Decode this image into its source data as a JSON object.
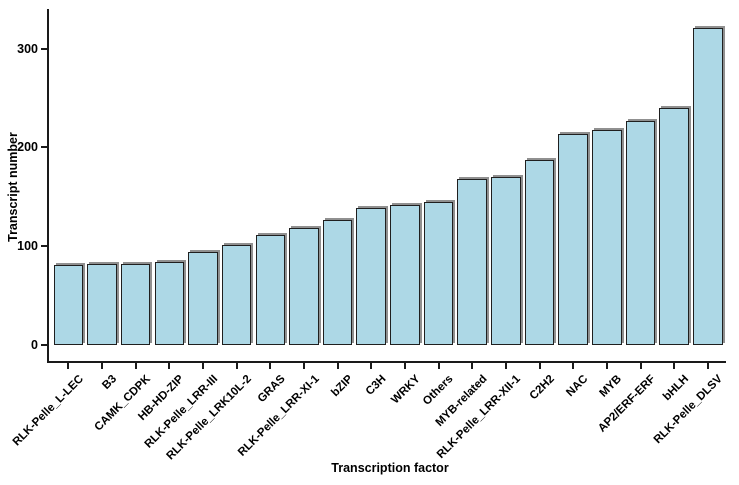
{
  "chart_data": {
    "type": "bar",
    "title": "",
    "xlabel": "Transcription factor",
    "ylabel": "Transcript number",
    "categories": [
      "RLK-Pelle_L-LEC",
      "B3",
      "CAMK_CDPK",
      "HB-HD-ZIP",
      "RLK-Pelle_LRR-III",
      "RLK-Pelle_LRK10L-2",
      "GRAS",
      "RLK-Pelle_LRR-XI-1",
      "bZIP",
      "C3H",
      "WRKY",
      "Others",
      "MYB-related",
      "RLK-Pelle_LRR-XII-1",
      "C2H2",
      "NAC",
      "MYB",
      "AP2/ERF-ERF",
      "bHLH",
      "RLK-Pelle_DLSV"
    ],
    "values": [
      81,
      82,
      82,
      84,
      94,
      101,
      111,
      118,
      127,
      139,
      142,
      145,
      168,
      170,
      187,
      214,
      218,
      227,
      240,
      321
    ],
    "yticks": [
      0,
      100,
      200,
      300
    ],
    "ylim": [
      0,
      340
    ],
    "grid": false,
    "legend": null,
    "colors": {
      "bar_fill": "#ADD8E6",
      "bar_border": "#1F1F1F",
      "bar_shadow": "#909090",
      "axis": "#1A1A1A",
      "text": "#000000"
    }
  }
}
